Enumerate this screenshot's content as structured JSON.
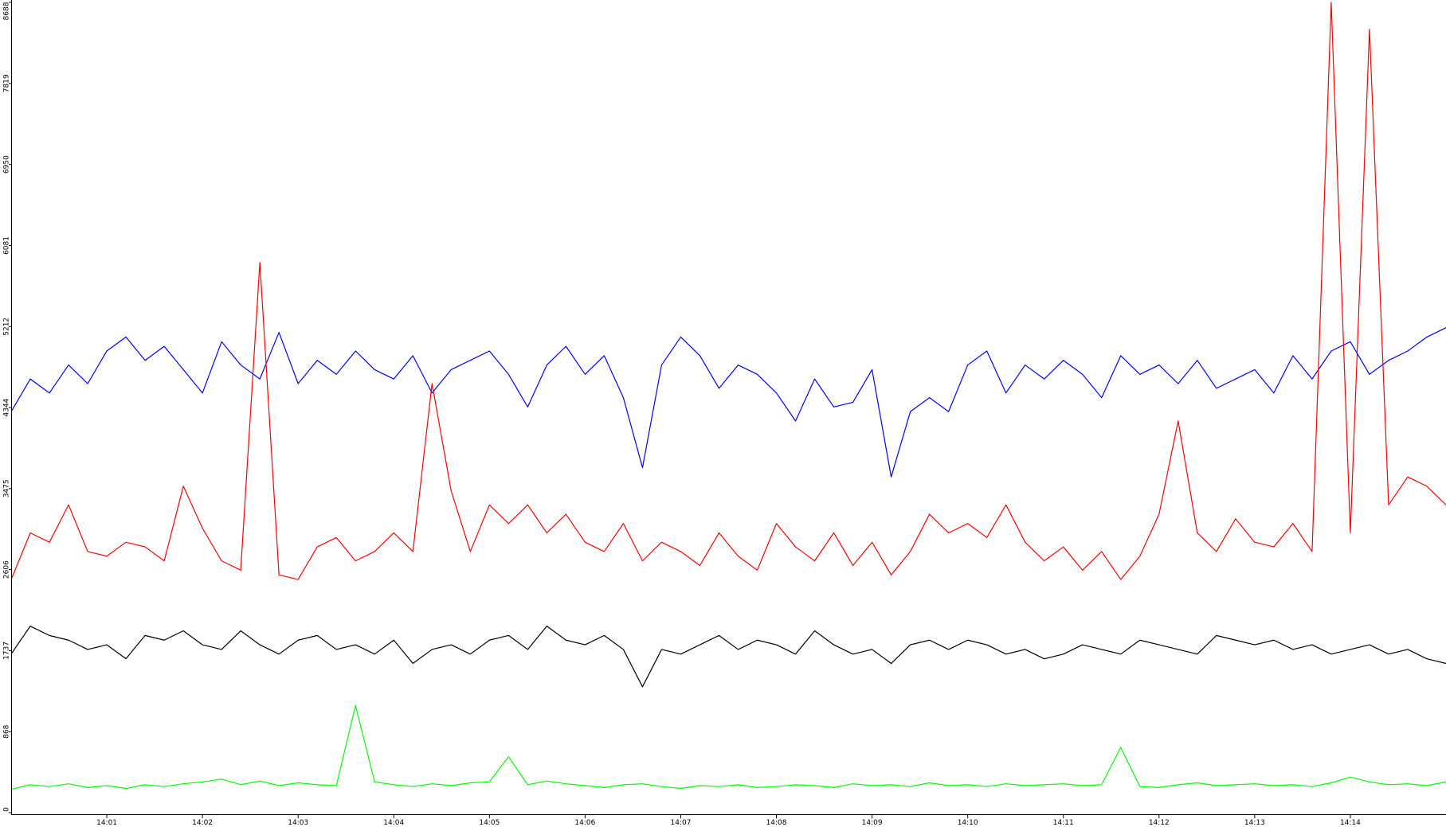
{
  "chart_data": {
    "type": "line",
    "x": [
      840,
      840.2,
      840.4,
      840.6,
      840.8,
      841,
      841.2,
      841.4,
      841.6,
      841.8,
      842,
      842.2,
      842.4,
      842.6,
      842.8,
      843,
      843.2,
      843.4,
      843.6,
      843.8,
      844,
      844.2,
      844.4,
      844.6,
      844.8,
      845,
      845.2,
      845.4,
      845.6,
      845.8,
      846,
      846.2,
      846.4,
      846.6,
      846.8,
      847,
      847.2,
      847.4,
      847.6,
      847.8,
      848,
      848.2,
      848.4,
      848.6,
      848.8,
      849,
      849.2,
      849.4,
      849.6,
      849.8,
      850,
      850.2,
      850.4,
      850.6,
      850.8,
      851,
      851.2,
      851.4,
      851.6,
      851.8,
      852,
      852.2,
      852.4,
      852.6,
      852.8,
      853,
      853.2,
      853.4,
      853.6,
      853.8,
      854,
      854.2,
      854.4,
      854.6,
      854.8,
      855
    ],
    "series": [
      {
        "color": "#0000ff",
        "values": [
          4300,
          4650,
          4500,
          4800,
          4600,
          4950,
          5100,
          4850,
          5000,
          4750,
          4500,
          5050,
          4800,
          4650,
          5150,
          4600,
          4850,
          4700,
          4950,
          4750,
          4650,
          4900,
          4500,
          4750,
          4850,
          4950,
          4700,
          4350,
          4800,
          5000,
          4700,
          4900,
          4450,
          3700,
          4800,
          5100,
          4900,
          4550,
          4800,
          4700,
          4500,
          4200,
          4650,
          4350,
          4400,
          4750,
          3600,
          4300,
          4450,
          4300,
          4800,
          4950,
          4500,
          4800,
          4650,
          4850,
          4700,
          4450,
          4900,
          4700,
          4800,
          4600,
          4850,
          4550,
          4650,
          4750,
          4500,
          4900,
          4650,
          4950,
          5050,
          4700,
          4850,
          4950,
          5100,
          5200
        ]
      },
      {
        "color": "#ff0000",
        "values": [
          2500,
          3000,
          2900,
          3300,
          2800,
          2750,
          2900,
          2850,
          2700,
          3500,
          3050,
          2700,
          2600,
          5900,
          2550,
          2500,
          2850,
          2950,
          2700,
          2800,
          3000,
          2800,
          4600,
          3450,
          2800,
          3300,
          3100,
          3300,
          3000,
          3200,
          2900,
          2800,
          3100,
          2700,
          2900,
          2800,
          2650,
          3000,
          2750,
          2600,
          3100,
          2850,
          2700,
          3000,
          2650,
          2900,
          2550,
          2800,
          3200,
          3000,
          3100,
          2950,
          3300,
          2900,
          2700,
          2850,
          2600,
          2800,
          2500,
          2750,
          3200,
          4200,
          3000,
          2800,
          3150,
          2900,
          2850,
          3100,
          2800,
          8688,
          3000,
          8400,
          3300,
          3600,
          3500,
          3300
        ]
      },
      {
        "color": "#000000",
        "values": [
          1700,
          2000,
          1900,
          1850,
          1750,
          1800,
          1650,
          1900,
          1850,
          1950,
          1800,
          1750,
          1950,
          1800,
          1700,
          1850,
          1900,
          1750,
          1800,
          1700,
          1850,
          1600,
          1750,
          1800,
          1700,
          1850,
          1900,
          1750,
          2000,
          1850,
          1800,
          1900,
          1750,
          1350,
          1750,
          1700,
          1800,
          1900,
          1750,
          1850,
          1800,
          1700,
          1950,
          1800,
          1700,
          1750,
          1600,
          1800,
          1850,
          1750,
          1850,
          1800,
          1700,
          1750,
          1650,
          1700,
          1800,
          1750,
          1700,
          1850,
          1800,
          1750,
          1700,
          1900,
          1850,
          1800,
          1850,
          1750,
          1800,
          1700,
          1750,
          1800,
          1700,
          1750,
          1650,
          1600
        ]
      },
      {
        "color": "#00ff00",
        "values": [
          250,
          300,
          280,
          310,
          270,
          290,
          260,
          300,
          280,
          310,
          330,
          360,
          300,
          340,
          290,
          320,
          300,
          290,
          1150,
          330,
          300,
          280,
          310,
          290,
          320,
          330,
          600,
          300,
          340,
          310,
          290,
          270,
          300,
          310,
          280,
          260,
          290,
          280,
          300,
          270,
          280,
          300,
          290,
          270,
          310,
          290,
          300,
          280,
          320,
          290,
          300,
          280,
          310,
          290,
          300,
          310,
          290,
          300,
          700,
          280,
          270,
          300,
          320,
          290,
          300,
          310,
          290,
          300,
          280,
          320,
          380,
          330,
          300,
          310,
          290,
          330
        ]
      }
    ],
    "xlim": [
      840,
      855
    ],
    "xticks": [
      {
        "value": 841,
        "label": "14:01"
      },
      {
        "value": 842,
        "label": "14:02"
      },
      {
        "value": 843,
        "label": "14:03"
      },
      {
        "value": 844,
        "label": "14:04"
      },
      {
        "value": 845,
        "label": "14:05"
      },
      {
        "value": 846,
        "label": "14:06"
      },
      {
        "value": 847,
        "label": "14:07"
      },
      {
        "value": 848,
        "label": "14:08"
      },
      {
        "value": 849,
        "label": "14:09"
      },
      {
        "value": 850,
        "label": "14:10"
      },
      {
        "value": 851,
        "label": "14:11"
      },
      {
        "value": 852,
        "label": "14:12"
      },
      {
        "value": 853,
        "label": "14:13"
      },
      {
        "value": 854,
        "label": "14:14"
      }
    ],
    "ylim": [
      0,
      8688
    ],
    "yticks": [
      0,
      868,
      1737,
      2606,
      3475,
      4344,
      5212,
      6081,
      6950,
      7819,
      8688
    ],
    "grid": false
  }
}
